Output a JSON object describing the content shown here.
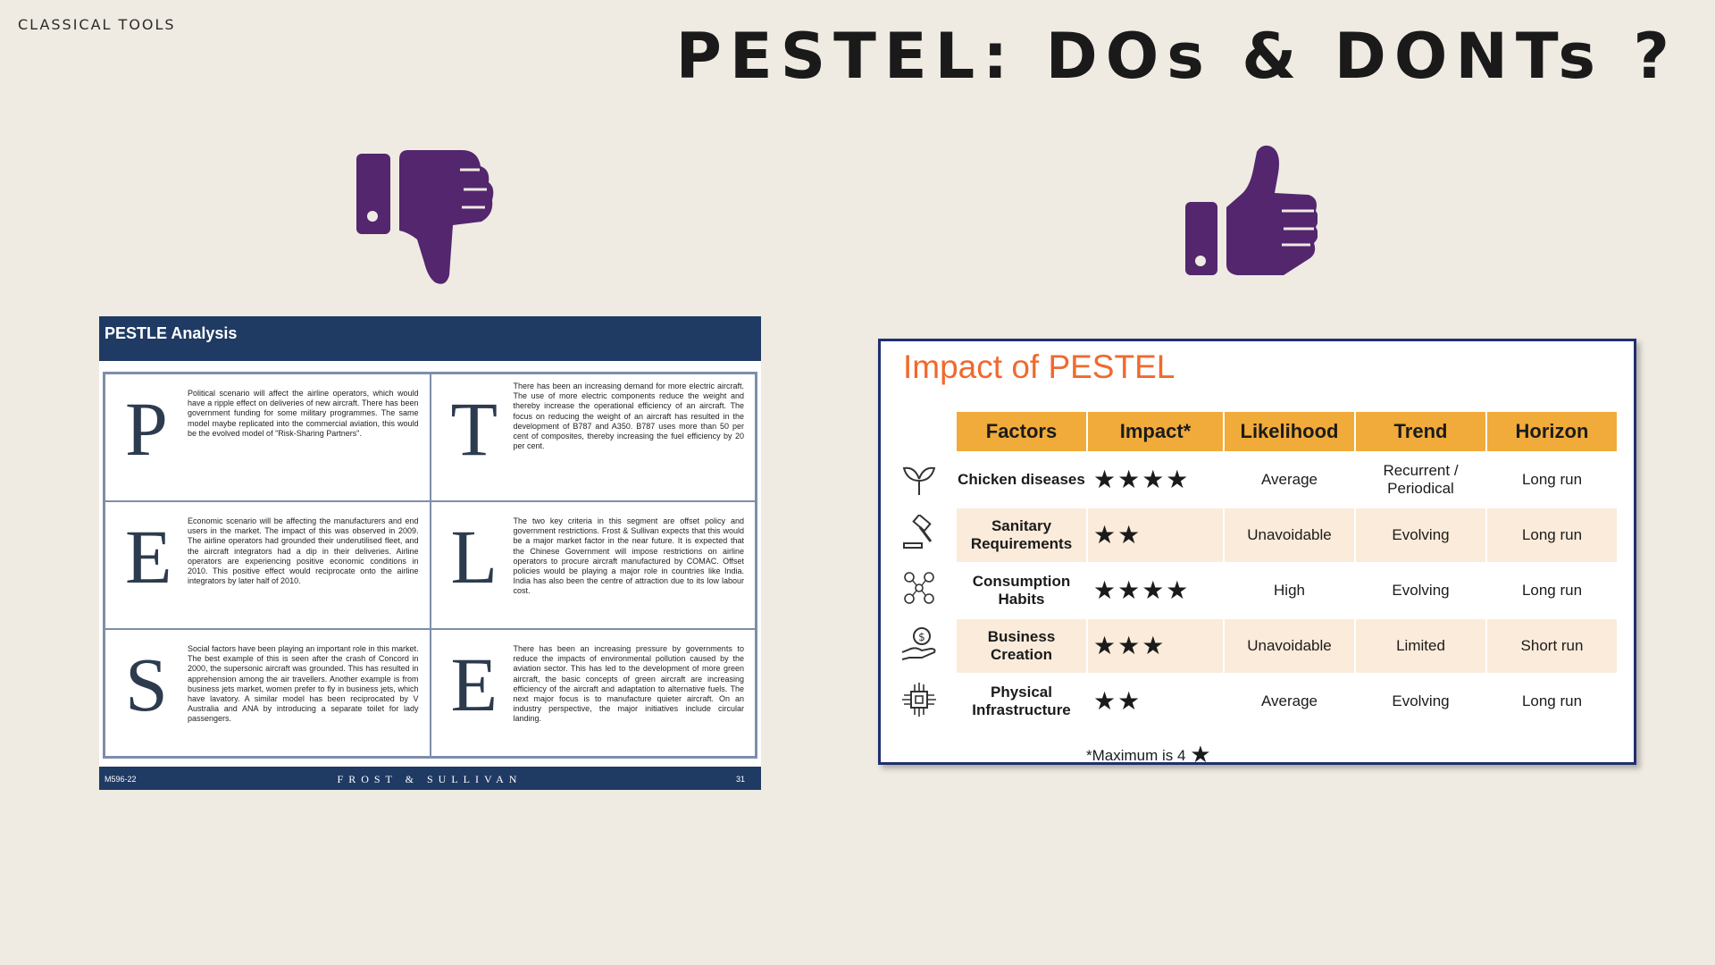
{
  "header": {
    "section_label": "CLASSICAL TOOLS",
    "title": "PESTEL: DOs & DONTs ?"
  },
  "colors": {
    "background": "#efebe2",
    "thumb": "#53266e",
    "navy": "#1f3a63",
    "accent_orange": "#f0692e",
    "table_header": "#f1ab3a",
    "table_shade": "#fbebda"
  },
  "icons": {
    "dont": "thumbs-down-icon",
    "do": "thumbs-up-icon"
  },
  "pestle_doc": {
    "title": "PESTLE Analysis",
    "cells": [
      {
        "letter": "P",
        "text": "Political scenario will affect the airline operators, which would have a ripple effect on deliveries of new aircraft. There has been government funding for some military programmes. The same model maybe replicated into the commercial aviation, this would be the evolved model of \"Risk-Sharing Partners\"."
      },
      {
        "letter": "T",
        "text": "There has been an increasing demand for more electric aircraft. The use of more electric components reduce the weight and thereby increase the operational efficiency of an aircraft. The focus on reducing the weight of an aircraft has resulted in the development of B787 and A350. B787 uses more than 50 per cent of composites, thereby increasing the fuel efficiency by 20 per cent."
      },
      {
        "letter": "E",
        "text": "Economic scenario will be affecting the manufacturers and end users in the market. The impact of this was observed in 2009. The airline operators had grounded their underutilised fleet, and the aircraft integrators had a dip in their deliveries. Airline operators are experiencing positive economic conditions in 2010. This positive effect would reciprocate onto the airline integrators by later half of 2010."
      },
      {
        "letter": "L",
        "text": "The two key criteria in this segment are offset policy and government restrictions. Frost & Sullivan expects that this would be a major market factor in the near future. It is expected that the Chinese Government will impose restrictions on airline operators to procure aircraft manufactured by COMAC. Offset policies would be playing a major role in countries like India. India has also been the centre of attraction due to its low labour cost."
      },
      {
        "letter": "S",
        "text": "Social factors have been playing an important role in this market. The best example of this is seen after the crash of Concord in 2000, the supersonic aircraft was grounded. This has resulted in apprehension among the air travellers. Another example is from business jets market, women prefer to fly in business jets, which have lavatory. A similar model has been reciprocated by V Australia and ANA by introducing a separate toilet for lady passengers."
      },
      {
        "letter": "E",
        "text": "There has been an increasing pressure by governments to reduce the impacts of environmental pollution caused by the aviation sector. This has led to the development of more green aircraft, the basic concepts of green aircraft are increasing efficiency of the aircraft and adaptation to alternative fuels. The next major focus is to manufacture quieter aircraft. On an industry perspective, the major initiatives include circular landing."
      }
    ],
    "footer": {
      "code": "M596-22",
      "brand": "FROST & SULLIVAN",
      "page": "31"
    }
  },
  "impact_card": {
    "title": "Impact of PESTEL",
    "columns": [
      "Factors",
      "Impact*",
      "Likelihood",
      "Trend",
      "Horizon"
    ],
    "rows": [
      {
        "icon": "plant-icon",
        "factor": "Chicken diseases",
        "impact": 4,
        "impact_stars": "★★★★",
        "likelihood": "Average",
        "trend": "Recurrent / Periodical",
        "horizon": "Long run"
      },
      {
        "icon": "gavel-icon",
        "factor": "Sanitary Requirements",
        "impact": 2,
        "impact_stars": "★★",
        "likelihood": "Unavoidable",
        "trend": "Evolving",
        "horizon": "Long run"
      },
      {
        "icon": "people-network-icon",
        "factor": "Consumption Habits",
        "impact": 4,
        "impact_stars": "★★★★",
        "likelihood": "High",
        "trend": "Evolving",
        "horizon": "Long run"
      },
      {
        "icon": "money-hand-icon",
        "factor": "Business Creation",
        "impact": 3,
        "impact_stars": "★★★",
        "likelihood": "Unavoidable",
        "trend": "Limited",
        "horizon": "Short run"
      },
      {
        "icon": "circuit-chip-icon",
        "factor": "Physical Infrastructure",
        "impact": 2,
        "impact_stars": "★★",
        "likelihood": "Average",
        "trend": "Evolving",
        "horizon": "Long run"
      }
    ],
    "footnote": "*Maximum is 4",
    "footnote_star": "★"
  }
}
